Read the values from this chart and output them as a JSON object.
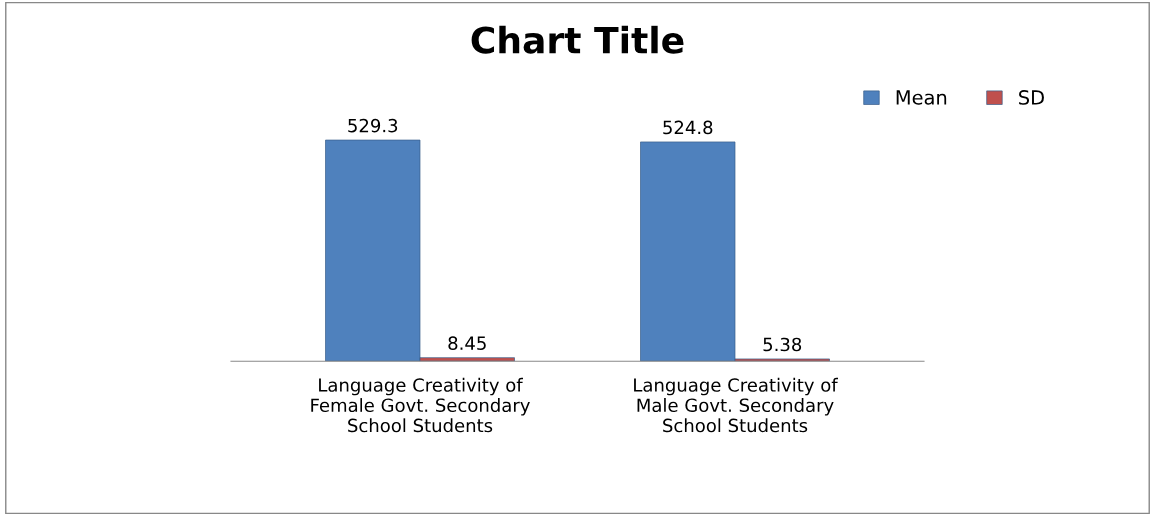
{
  "chart_data": {
    "type": "bar",
    "title": "Chart Title",
    "categories": [
      "Language Creativity of Female Govt. Secondary School Students",
      "Language Creativity of Male Govt. Secondary School Students"
    ],
    "series": [
      {
        "name": "Mean",
        "color": "#4f81bd",
        "values": [
          529.3,
          524.8
        ]
      },
      {
        "name": "SD",
        "color": "#c0504d",
        "values": [
          8.45,
          5.38
        ]
      }
    ],
    "data_labels": true,
    "legend": "top right",
    "grid": false
  }
}
